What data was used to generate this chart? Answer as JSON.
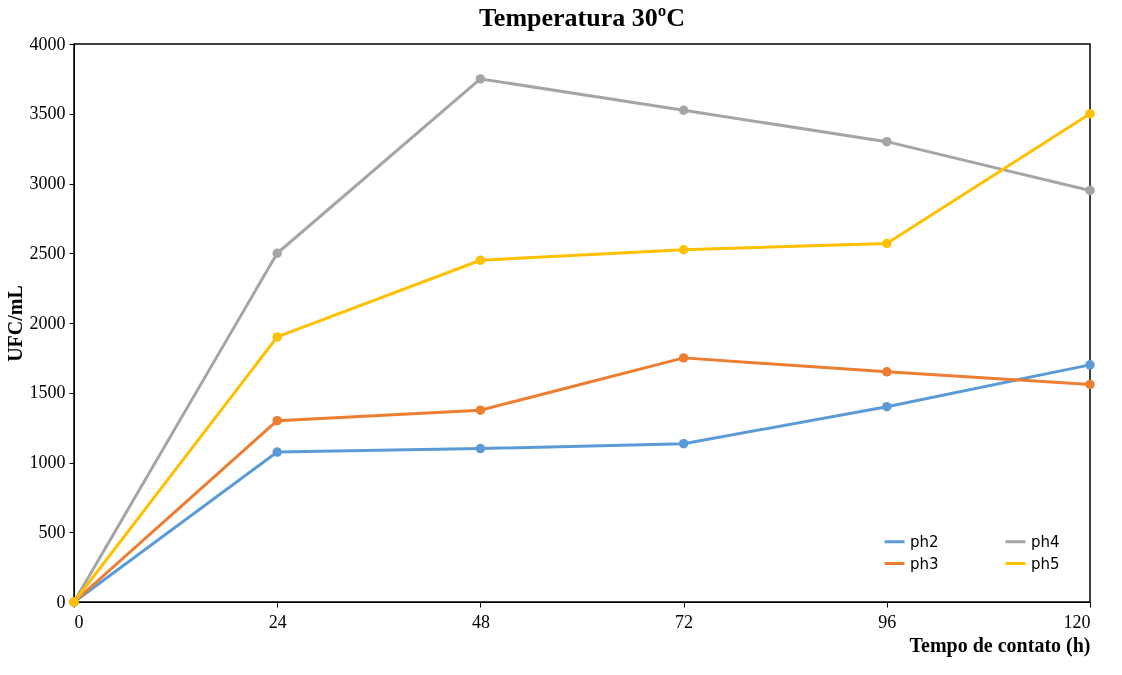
{
  "chart_data": {
    "type": "line",
    "title": "Temperatura 30ºC",
    "xlabel": "Tempo de contato (h)",
    "ylabel": "UFC/mL",
    "x": [
      0,
      24,
      48,
      72,
      96,
      120
    ],
    "series": [
      {
        "name": "ph2",
        "color": "#5b9bd5",
        "values": [
          0,
          1075,
          1100,
          1135,
          1400,
          1700
        ]
      },
      {
        "name": "ph3",
        "color": "#ed7d31",
        "values": [
          0,
          1300,
          1375,
          1750,
          1650,
          1560
        ]
      },
      {
        "name": "ph4",
        "color": "#a5a5a5",
        "values": [
          0,
          2500,
          3750,
          3525,
          3300,
          2950
        ]
      },
      {
        "name": "ph5",
        "color": "#ffc000",
        "values": [
          0,
          1900,
          2450,
          2525,
          2570,
          3500
        ]
      }
    ],
    "xlim": [
      0,
      120
    ],
    "xticks": [
      0,
      24,
      48,
      72,
      96,
      120
    ],
    "ylim": [
      0,
      4000
    ],
    "yticks": [
      0,
      500,
      1000,
      1500,
      2000,
      2500,
      3000,
      3500,
      4000
    ],
    "grid": false,
    "legend": "bottom right",
    "marker": "circle",
    "line_style": "solid"
  }
}
